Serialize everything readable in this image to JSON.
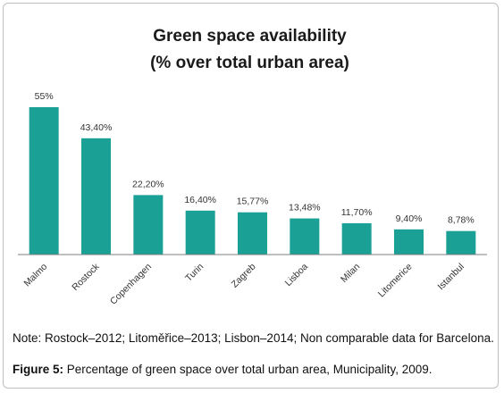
{
  "chart_data": {
    "type": "bar",
    "title_lines": [
      "Green space availability",
      "(% over total urban area)"
    ],
    "categories": [
      "Malmo",
      "Rostock",
      "Copenhagen",
      "Turin",
      "Zagreb",
      "Lisboa",
      "Milan",
      "Litomerice",
      "Istanbul"
    ],
    "values": [
      55,
      43.4,
      22.2,
      16.4,
      15.77,
      13.48,
      11.7,
      9.4,
      8.78
    ],
    "value_labels": [
      "55%",
      "43,40%",
      "22,20%",
      "16,40%",
      "15,77%",
      "13,48%",
      "11,70%",
      "9,40%",
      "8,78%"
    ],
    "xlabel": "",
    "ylabel": "",
    "ylim": [
      0,
      60
    ],
    "grid": false,
    "bar_color": "#1aa094"
  },
  "note": "Note: Rostock–2012; Litoměřice–2013; Lisbon–2014; Non comparable data for Barcelona.",
  "caption": {
    "label": "Figure 5:",
    "text": " Percentage of green space over total urban area, Municipality, 2009."
  }
}
